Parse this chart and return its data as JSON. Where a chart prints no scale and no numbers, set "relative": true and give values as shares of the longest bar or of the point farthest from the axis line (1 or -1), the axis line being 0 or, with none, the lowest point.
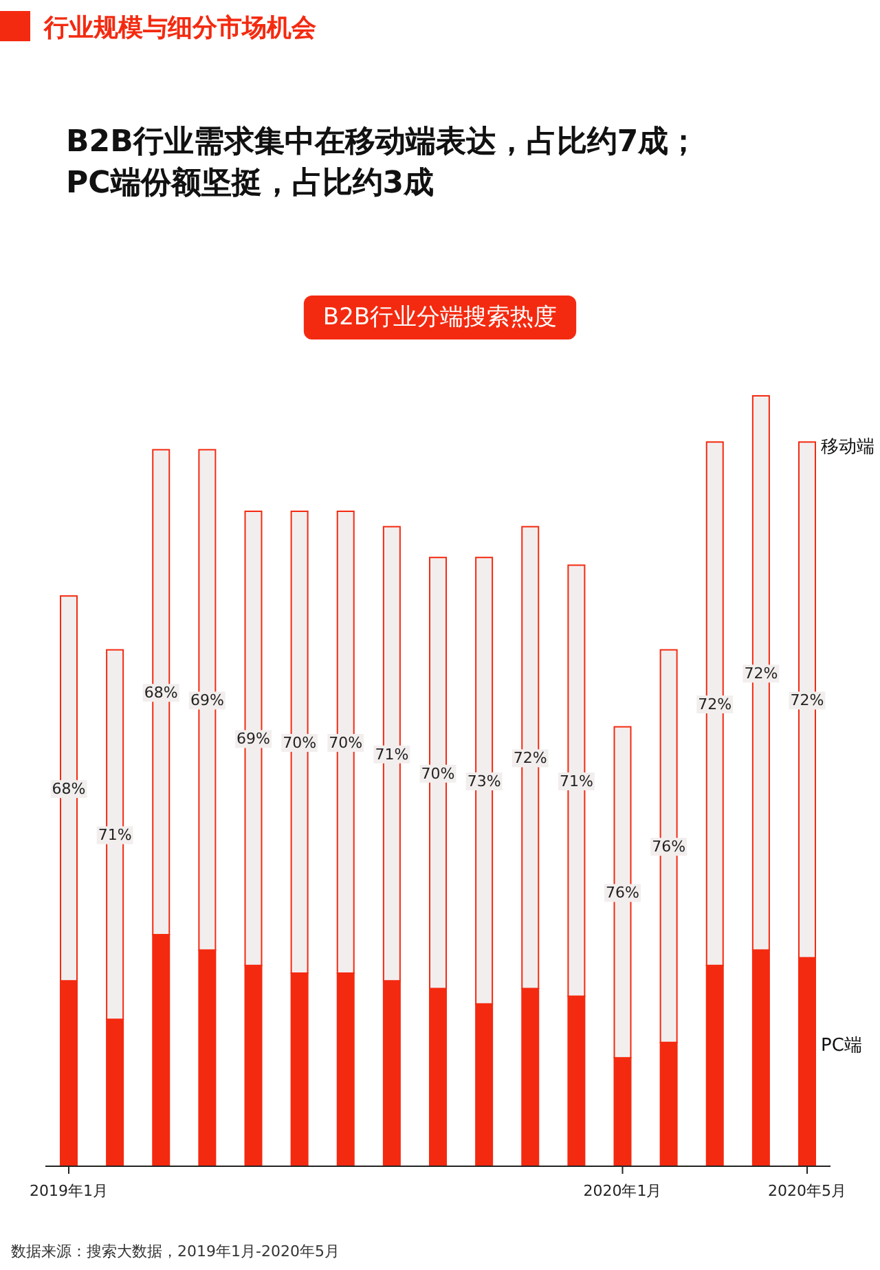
{
  "chart_data": {
    "type": "bar",
    "stacked": true,
    "relative": true,
    "title": "B2B行业分端搜索热度",
    "subtitle": "B2B行业需求集中在移动端表达，占比约7成；\nPC端份额坚挺，占比约3成",
    "annotations": [
      "行业规模与细分市场机会",
      "数据来源：搜索大数据，2019年1月-2020年5月",
      "68%",
      "71%",
      "68%",
      "69%",
      "69%",
      "70%",
      "70%",
      "71%",
      "70%",
      "73%",
      "72%",
      "71%",
      "76%",
      "76%",
      "72%",
      "72%",
      "72%"
    ],
    "categories": [
      "2019年1月",
      null,
      null,
      null,
      null,
      null,
      null,
      null,
      null,
      null,
      null,
      null,
      "2020年1月",
      null,
      null,
      null,
      "2020年5月"
    ],
    "series": [
      {
        "name": "PC端",
        "color": "#f42a10",
        "values": [
          0.24,
          0.19,
          0.3,
          0.28,
          0.26,
          0.25,
          0.25,
          0.24,
          0.23,
          0.21,
          0.23,
          0.22,
          0.14,
          0.16,
          0.26,
          0.28,
          0.27
        ]
      },
      {
        "name": "移动端",
        "color": "#f3eeee",
        "values": [
          0.5,
          0.48,
          0.63,
          0.65,
          0.59,
          0.6,
          0.6,
          0.59,
          0.56,
          0.58,
          0.6,
          0.56,
          0.43,
          0.51,
          0.68,
          0.72,
          0.67
        ]
      }
    ]
  }
}
